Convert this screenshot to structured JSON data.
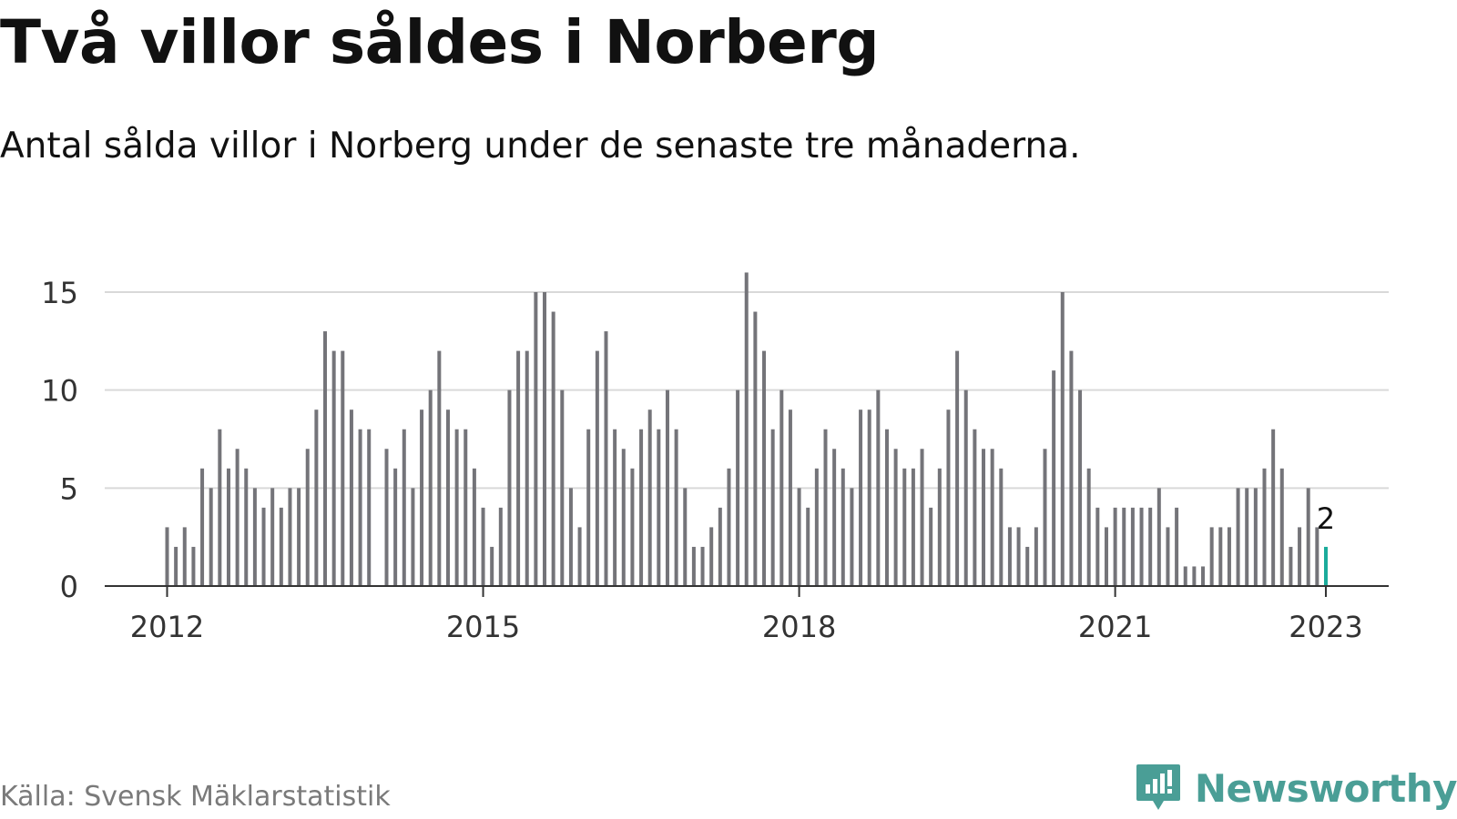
{
  "header": {
    "title": "Två villor såldes i Norberg",
    "subtitle": "Antal sålda villor i Norberg under de senaste tre månaderna."
  },
  "footer": {
    "source": "Källa: Svensk Mäklarstatistik",
    "brand": "Newsworthy"
  },
  "colors": {
    "bar": "#747479",
    "highlight": "#1aab9b",
    "grid": "#d9d9d9",
    "axis": "#333333",
    "brand": "#4a9e96"
  },
  "chart_data": {
    "type": "bar",
    "title": "Två villor såldes i Norberg",
    "subtitle": "Antal sålda villor i Norberg under de senaste tre månaderna.",
    "xlabel": "",
    "ylabel": "",
    "ylim": [
      0,
      16
    ],
    "yticks": [
      0,
      5,
      10,
      15
    ],
    "grid": true,
    "x_tick_labels": [
      "2012",
      "2015",
      "2018",
      "2021",
      "2023"
    ],
    "x": [
      "2012-01",
      "2012-02",
      "2012-03",
      "2012-04",
      "2012-05",
      "2012-06",
      "2012-07",
      "2012-08",
      "2012-09",
      "2012-10",
      "2012-11",
      "2012-12",
      "2013-01",
      "2013-02",
      "2013-03",
      "2013-04",
      "2013-05",
      "2013-06",
      "2013-07",
      "2013-08",
      "2013-09",
      "2013-10",
      "2013-11",
      "2013-12",
      "2014-01",
      "2014-02",
      "2014-03",
      "2014-04",
      "2014-05",
      "2014-06",
      "2014-07",
      "2014-08",
      "2014-09",
      "2014-10",
      "2014-11",
      "2014-12",
      "2015-01",
      "2015-02",
      "2015-03",
      "2015-04",
      "2015-05",
      "2015-06",
      "2015-07",
      "2015-08",
      "2015-09",
      "2015-10",
      "2015-11",
      "2015-12",
      "2016-01",
      "2016-02",
      "2016-03",
      "2016-04",
      "2016-05",
      "2016-06",
      "2016-07",
      "2016-08",
      "2016-09",
      "2016-10",
      "2016-11",
      "2016-12",
      "2017-01",
      "2017-02",
      "2017-03",
      "2017-04",
      "2017-05",
      "2017-06",
      "2017-07",
      "2017-08",
      "2017-09",
      "2017-10",
      "2017-11",
      "2017-12",
      "2018-01",
      "2018-02",
      "2018-03",
      "2018-04",
      "2018-05",
      "2018-06",
      "2018-07",
      "2018-08",
      "2018-09",
      "2018-10",
      "2018-11",
      "2018-12",
      "2019-01",
      "2019-02",
      "2019-03",
      "2019-04",
      "2019-05",
      "2019-06",
      "2019-07",
      "2019-08",
      "2019-09",
      "2019-10",
      "2019-11",
      "2019-12",
      "2020-01",
      "2020-02",
      "2020-03",
      "2020-04",
      "2020-05",
      "2020-06",
      "2020-07",
      "2020-08",
      "2020-09",
      "2020-10",
      "2020-11",
      "2020-12",
      "2021-01",
      "2021-02",
      "2021-03",
      "2021-04",
      "2021-05",
      "2021-06",
      "2021-07",
      "2021-08",
      "2021-09",
      "2021-10",
      "2021-11",
      "2021-12",
      "2022-01",
      "2022-02",
      "2022-03",
      "2022-04",
      "2022-05",
      "2022-06",
      "2022-07",
      "2022-08",
      "2022-09",
      "2022-10",
      "2022-11",
      "2022-12",
      "2023-01"
    ],
    "values": [
      3,
      2,
      3,
      2,
      6,
      5,
      8,
      6,
      7,
      6,
      5,
      4,
      5,
      4,
      5,
      5,
      7,
      9,
      13,
      12,
      12,
      9,
      8,
      8,
      0,
      7,
      6,
      8,
      5,
      9,
      10,
      12,
      9,
      8,
      8,
      6,
      4,
      2,
      4,
      10,
      12,
      12,
      15,
      15,
      14,
      10,
      5,
      3,
      8,
      12,
      13,
      8,
      7,
      6,
      8,
      9,
      8,
      10,
      8,
      5,
      2,
      2,
      3,
      4,
      6,
      10,
      16,
      14,
      12,
      8,
      10,
      9,
      5,
      4,
      6,
      8,
      7,
      6,
      5,
      9,
      9,
      10,
      8,
      7,
      6,
      6,
      7,
      4,
      6,
      9,
      12,
      10,
      8,
      7,
      7,
      6,
      3,
      3,
      2,
      3,
      7,
      11,
      15,
      12,
      10,
      6,
      4,
      3,
      4,
      4,
      4,
      4,
      4,
      5,
      3,
      4,
      1,
      1,
      1,
      3,
      3,
      3,
      5,
      5,
      5,
      6,
      8,
      6,
      2,
      3,
      5,
      3,
      2
    ],
    "highlight_index": 132,
    "annotations": [
      {
        "x": "2023-01",
        "y": 2,
        "text": "2"
      }
    ]
  }
}
